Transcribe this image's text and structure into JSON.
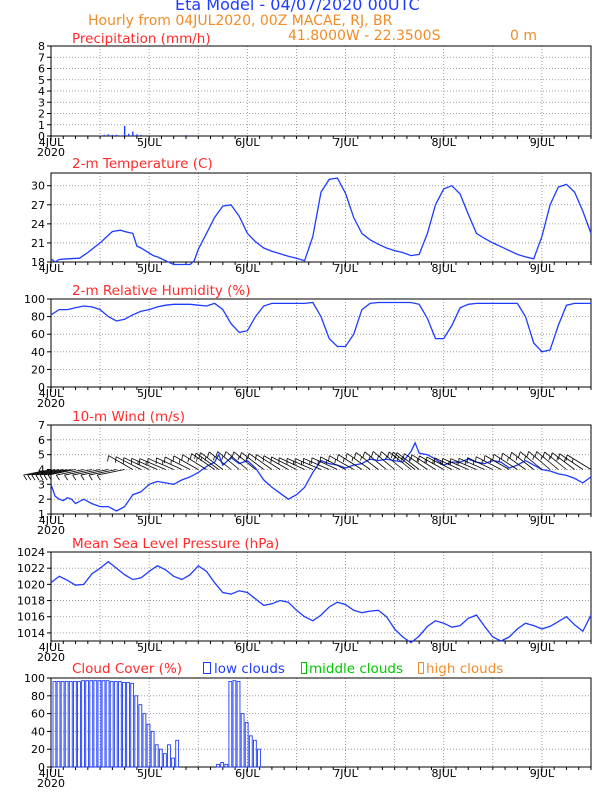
{
  "header": {
    "title": "Eta Model - 04/07/2020 00UTC",
    "subtitle": "Hourly from 04JUL2020, 00Z  MACAE, RJ, BR",
    "coords": "41.8000W - 22.3500S",
    "elevation": "0  m"
  },
  "colors": {
    "title": "#1e3cff",
    "header_text": "#f08c28",
    "panel_title": "#ff2a2a",
    "series": "#1e3cff",
    "wind_barbs": "#000000",
    "middle_clouds": "#00c800",
    "high_clouds": "#f08c28"
  },
  "time_axis": {
    "labels": [
      "4JUL",
      "5JUL",
      "6JUL",
      "7JUL",
      "8JUL",
      "9JUL"
    ],
    "year_label": "2020",
    "xlim_hours": [
      0,
      132
    ]
  },
  "legend": {
    "low": "low clouds",
    "middle": "middle clouds",
    "high": "high clouds"
  },
  "chart_data": [
    {
      "type": "bar",
      "title": "Precipitation (mm/h)",
      "ylim": [
        0,
        8
      ],
      "yticks": [
        0,
        1,
        2,
        3,
        4,
        5,
        6,
        7,
        8
      ],
      "series": [
        {
          "name": "precipitation",
          "x": [
            12,
            13,
            14,
            15,
            16,
            17,
            18,
            19,
            20,
            21,
            22,
            33
          ],
          "values": [
            0.05,
            0.1,
            0.15,
            0.1,
            0.1,
            0.05,
            0.9,
            0.2,
            0.4,
            0.15,
            0.1,
            0.08
          ]
        }
      ]
    },
    {
      "type": "line",
      "title": "2-m Temperature (C)",
      "ylim": [
        18,
        32
      ],
      "yticks": [
        18,
        21,
        24,
        27,
        30
      ],
      "series": [
        {
          "name": "temperature",
          "x": [
            0,
            1,
            2,
            4,
            7,
            9,
            12,
            15,
            17,
            18,
            20,
            21,
            22,
            25,
            26,
            28,
            30,
            32,
            34,
            35,
            36,
            38,
            40,
            42,
            44,
            46,
            48,
            50,
            52,
            54,
            56,
            58,
            60,
            62,
            64,
            66,
            68,
            70,
            72,
            74,
            76,
            78,
            80,
            82,
            84,
            86,
            88,
            90,
            92,
            94,
            96,
            98,
            100,
            102,
            104,
            106,
            108,
            110,
            112,
            114,
            116,
            118,
            120,
            122,
            124,
            126,
            128,
            130,
            132
          ],
          "values": [
            18.5,
            18.0,
            18.4,
            18.5,
            18.6,
            19.5,
            21.0,
            22.8,
            23.0,
            22.8,
            22.5,
            20.5,
            20.2,
            19.0,
            18.8,
            18.2,
            17.6,
            17.6,
            17.6,
            18.2,
            20.0,
            22.5,
            25.0,
            26.8,
            27.0,
            25.2,
            22.5,
            21.2,
            20.2,
            19.7,
            19.3,
            18.9,
            18.6,
            18.2,
            22.0,
            29.0,
            31.0,
            31.2,
            28.8,
            25.0,
            22.5,
            21.5,
            20.8,
            20.2,
            19.8,
            19.5,
            19.0,
            19.2,
            22.5,
            27.0,
            29.5,
            30.0,
            28.7,
            25.5,
            22.5,
            21.7,
            21.0,
            20.4,
            19.8,
            19.2,
            18.8,
            18.5,
            22.0,
            27.0,
            29.8,
            30.2,
            29.0,
            26.0,
            22.5
          ]
        }
      ]
    },
    {
      "type": "line",
      "title": "2-m Relative Humidity (%)",
      "ylim": [
        0,
        100
      ],
      "yticks": [
        0,
        20,
        40,
        60,
        80,
        100
      ],
      "series": [
        {
          "name": "relative_humidity",
          "x": [
            0,
            2,
            4,
            6,
            8,
            10,
            12,
            14,
            16,
            18,
            20,
            22,
            24,
            26,
            28,
            30,
            32,
            34,
            36,
            38,
            40,
            42,
            44,
            46,
            48,
            50,
            52,
            54,
            56,
            58,
            60,
            62,
            64,
            66,
            68,
            70,
            72,
            74,
            76,
            78,
            80,
            82,
            84,
            86,
            88,
            90,
            92,
            94,
            96,
            98,
            100,
            102,
            104,
            106,
            108,
            110,
            112,
            114,
            116,
            118,
            120,
            122,
            124,
            126,
            128,
            130,
            132
          ],
          "values": [
            82,
            88,
            88,
            90,
            92,
            91,
            88,
            80,
            75,
            77,
            82,
            86,
            88,
            91,
            93,
            94,
            94,
            94,
            93,
            92,
            95,
            88,
            72,
            62,
            64,
            80,
            92,
            95,
            95,
            95,
            95,
            95,
            96,
            80,
            55,
            46,
            46,
            60,
            88,
            95,
            96,
            96,
            96,
            96,
            96,
            94,
            78,
            55,
            55,
            70,
            90,
            94,
            95,
            95,
            95,
            95,
            95,
            95,
            80,
            50,
            40,
            42,
            70,
            93,
            95,
            95,
            95
          ]
        }
      ]
    },
    {
      "type": "line",
      "title": "10-m Wind (m/s)",
      "ylim": [
        1,
        7
      ],
      "yticks": [
        1,
        2,
        3,
        4,
        5,
        6,
        7
      ],
      "series": [
        {
          "name": "wind_speed",
          "x": [
            0,
            1,
            2,
            3,
            4,
            5,
            6,
            8,
            10,
            12,
            14,
            16,
            18,
            20,
            22,
            24,
            26,
            28,
            30,
            32,
            34,
            36,
            38,
            40,
            41,
            42,
            44,
            46,
            48,
            50,
            52,
            54,
            56,
            58,
            60,
            62,
            64,
            66,
            68,
            70,
            72,
            74,
            76,
            78,
            80,
            82,
            84,
            86,
            88,
            89,
            90,
            92,
            94,
            96,
            98,
            100,
            102,
            104,
            106,
            108,
            110,
            112,
            114,
            116,
            118,
            120,
            122,
            124,
            126,
            128,
            130,
            132
          ],
          "values": [
            3.0,
            2.2,
            2.0,
            1.9,
            2.1,
            2.0,
            1.7,
            2.0,
            1.7,
            1.5,
            1.5,
            1.2,
            1.5,
            2.3,
            2.5,
            3.0,
            3.2,
            3.1,
            3.0,
            3.3,
            3.5,
            3.8,
            4.2,
            4.5,
            5.0,
            4.3,
            4.8,
            4.4,
            4.6,
            4.1,
            3.3,
            2.8,
            2.4,
            2.0,
            2.3,
            2.8,
            3.8,
            4.6,
            4.4,
            4.3,
            4.1,
            4.3,
            4.4,
            4.7,
            4.6,
            4.7,
            4.6,
            4.5,
            5.2,
            5.8,
            5.1,
            5.0,
            4.7,
            4.3,
            4.5,
            4.5,
            4.7,
            4.5,
            4.4,
            4.6,
            4.5,
            4.1,
            4.3,
            4.6,
            4.3,
            4.0,
            3.9,
            3.7,
            3.6,
            3.4,
            3.1,
            3.5
          ]
        }
      ]
    },
    {
      "type": "line",
      "title": "Mean Sea Level Pressure (hPa)",
      "ylim": [
        1013,
        1024
      ],
      "yticks": [
        1014,
        1016,
        1018,
        1020,
        1022,
        1024
      ],
      "series": [
        {
          "name": "mslp",
          "x": [
            0,
            2,
            4,
            6,
            8,
            10,
            12,
            14,
            16,
            18,
            20,
            22,
            24,
            26,
            28,
            30,
            32,
            34,
            36,
            38,
            40,
            42,
            44,
            46,
            48,
            50,
            52,
            54,
            56,
            58,
            60,
            62,
            64,
            66,
            68,
            70,
            72,
            74,
            76,
            78,
            80,
            82,
            84,
            86,
            88,
            90,
            92,
            94,
            96,
            98,
            100,
            102,
            104,
            106,
            108,
            110,
            112,
            114,
            116,
            118,
            120,
            122,
            124,
            126,
            128,
            130,
            132
          ],
          "values": [
            1020.2,
            1021.0,
            1020.5,
            1019.9,
            1020.0,
            1021.3,
            1022.0,
            1022.8,
            1022.0,
            1021.2,
            1020.6,
            1020.8,
            1021.6,
            1022.3,
            1021.8,
            1021.0,
            1020.6,
            1021.2,
            1022.3,
            1021.6,
            1020.2,
            1019.0,
            1018.8,
            1019.2,
            1019.0,
            1018.2,
            1017.4,
            1017.6,
            1018.0,
            1017.8,
            1016.8,
            1016.0,
            1015.5,
            1016.2,
            1017.2,
            1017.8,
            1017.5,
            1016.8,
            1016.5,
            1016.7,
            1016.8,
            1016.0,
            1014.5,
            1013.5,
            1012.8,
            1013.6,
            1014.8,
            1015.5,
            1015.2,
            1014.7,
            1014.9,
            1015.8,
            1016.2,
            1014.8,
            1013.5,
            1013.0,
            1013.5,
            1014.5,
            1015.2,
            1014.9,
            1014.5,
            1014.8,
            1015.4,
            1016.0,
            1015.0,
            1014.2,
            1016.2
          ]
        }
      ]
    },
    {
      "type": "bar",
      "title": "Cloud Cover (%)",
      "ylim": [
        0,
        100
      ],
      "yticks": [
        0,
        20,
        40,
        60,
        80,
        100
      ],
      "series": [
        {
          "name": "low clouds",
          "x": [
            0,
            1,
            2,
            3,
            4,
            5,
            6,
            7,
            8,
            9,
            10,
            11,
            12,
            13,
            14,
            15,
            16,
            17,
            18,
            19,
            20,
            21,
            22,
            23,
            24,
            25,
            26,
            27,
            28,
            29,
            30,
            31,
            32,
            33,
            34,
            35,
            36,
            37,
            38,
            39,
            40,
            41,
            42,
            43,
            44,
            45,
            46,
            47,
            48,
            49,
            50,
            51,
            52,
            53,
            54,
            55,
            56,
            57,
            58,
            59,
            60,
            61,
            62,
            63,
            64,
            65,
            66,
            67,
            68,
            69,
            70,
            71,
            72,
            73,
            74,
            75,
            76,
            77,
            78,
            79,
            80,
            81,
            82,
            83,
            84,
            85,
            86,
            87,
            88,
            89,
            90,
            91,
            92,
            93,
            94,
            95,
            96,
            97,
            98,
            99,
            100,
            101,
            102,
            103,
            104,
            105,
            106,
            107,
            108,
            109,
            110,
            111,
            112,
            113,
            114,
            115,
            116,
            117,
            118,
            119,
            120,
            121,
            122,
            123,
            124,
            125,
            126,
            127,
            128,
            129,
            130,
            131
          ],
          "values": [
            96,
            96,
            96,
            96,
            96,
            96,
            96,
            97,
            97,
            97,
            97,
            97,
            97,
            97,
            96,
            96,
            96,
            95,
            95,
            94,
            80,
            70,
            60,
            48,
            40,
            25,
            20,
            15,
            25,
            10,
            30,
            0,
            0,
            0,
            0,
            0,
            0,
            0,
            0,
            0,
            3,
            5,
            3,
            96,
            97,
            96,
            60,
            50,
            35,
            30,
            20,
            0,
            0,
            0,
            0,
            0,
            0,
            0,
            0,
            0,
            0,
            0,
            0,
            0,
            0,
            0,
            0,
            0,
            0,
            0,
            0,
            0,
            0,
            0,
            0,
            0,
            0,
            0,
            0,
            0,
            0,
            0,
            0,
            0,
            0,
            0,
            0,
            0,
            0,
            0,
            0,
            0,
            0,
            0,
            0,
            0,
            0,
            0,
            0,
            0,
            0,
            0,
            0,
            0,
            0,
            0,
            0,
            0,
            0,
            0,
            0,
            0,
            0,
            0,
            0,
            0,
            0,
            0,
            0,
            0,
            0,
            0,
            0,
            0,
            0,
            0,
            0,
            0,
            0,
            0,
            0,
            0
          ]
        },
        {
          "name": "middle clouds",
          "x": [],
          "values": []
        },
        {
          "name": "high clouds",
          "x": [],
          "values": []
        }
      ]
    }
  ]
}
